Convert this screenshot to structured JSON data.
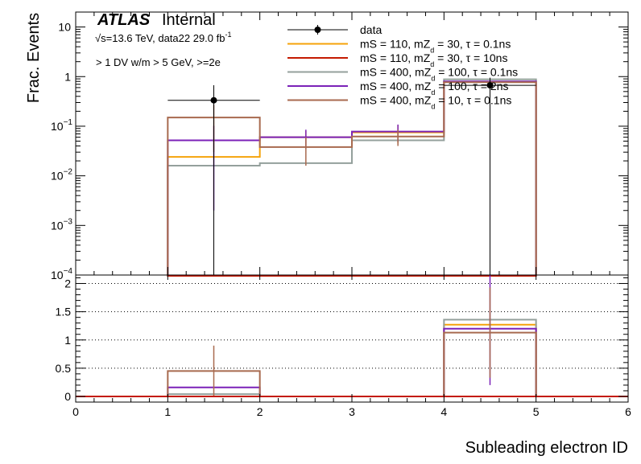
{
  "chart_data": {
    "type": "histogram",
    "title_brand": "ATLAS",
    "title_status": "Internal",
    "energy_prefix": "√s=13.6 TeV, data22 29.0 fb",
    "energy_sup": "-1",
    "selection_label": "> 1 DV w/m > 5 GeV, >=2e",
    "xlabel": "Subleading electron ID",
    "ylabel": "Frac. Events",
    "xlim": [
      0,
      6
    ],
    "top_ylim_log": [
      0.0001,
      20
    ],
    "ratio_ylim": [
      -0.1,
      2.15
    ],
    "x_ticks": [
      "0",
      "1",
      "2",
      "3",
      "4",
      "5",
      "6"
    ],
    "top_y_ticks": [
      {
        "value": 10,
        "label": "10"
      },
      {
        "value": 1,
        "label": "1"
      },
      {
        "value": 0.1,
        "base": "10",
        "exp": "−1"
      },
      {
        "value": 0.01,
        "base": "10",
        "exp": "−2"
      },
      {
        "value": 0.001,
        "base": "10",
        "exp": "−3"
      },
      {
        "value": 0.0001,
        "base": "10",
        "exp": "−4"
      }
    ],
    "ratio_y_ticks": [
      {
        "value": 0,
        "label": "0"
      },
      {
        "value": 0.5,
        "label": "0.5"
      },
      {
        "value": 1,
        "label": "1"
      },
      {
        "value": 1.5,
        "label": "1.5"
      },
      {
        "value": 2,
        "label": "2"
      }
    ],
    "bins": [
      1,
      2,
      3,
      4,
      5
    ],
    "data_series": {
      "name": "data",
      "color": "#000000",
      "points": [
        {
          "x": 1.5,
          "y": 0.333,
          "ylow": 0.0,
          "yhigh": 0.67,
          "xlow": 1,
          "xhigh": 2
        },
        {
          "x": 4.5,
          "y": 0.667,
          "ylow": 0.0,
          "yhigh": 0.95,
          "xlow": 4,
          "xhigh": 5
        }
      ]
    },
    "series": [
      {
        "legend": [
          "mS = 110, mZ",
          "d",
          " = 30, τ = 0.1ns"
        ],
        "color": "#f5a30a",
        "values": [
          0.024,
          0.06,
          0.075,
          0.78
        ],
        "errors": [
          0,
          0.02,
          0.03,
          0.03
        ],
        "ratio": [
          0,
          0,
          0,
          1.27
        ],
        "ratio_errors": [
          0,
          0,
          0,
          0
        ]
      },
      {
        "legend": [
          "mS = 110, mZ",
          "d",
          " = 30, τ = 10ns"
        ],
        "color": "#c41a00",
        "values": [
          0.0,
          0.0,
          0.0,
          0.0
        ],
        "errors": [
          0,
          0,
          0,
          0
        ],
        "ratio": [
          0,
          0,
          0,
          0
        ],
        "ratio_errors": [
          0,
          0,
          0,
          0
        ]
      },
      {
        "legend": [
          "mS = 400, mZ",
          "d",
          " = 100, τ = 0.1ns"
        ],
        "color": "#94a09c",
        "values": [
          0.016,
          0.018,
          0.052,
          0.88
        ],
        "errors": [
          0,
          0,
          0,
          0
        ],
        "ratio": [
          0.04,
          0,
          0,
          1.36
        ],
        "ratio_errors": [
          0,
          0,
          0,
          0
        ]
      },
      {
        "legend": [
          "mS = 400, mZ",
          "d",
          " = 100, τ = 2ns"
        ],
        "color": "#7b22b8",
        "values": [
          0.052,
          0.06,
          0.078,
          0.8
        ],
        "errors": [
          0.05,
          0.025,
          0.03,
          0.03
        ],
        "ratio": [
          0.16,
          0,
          0,
          1.2
        ],
        "ratio_errors": [
          0,
          0,
          0,
          1.0
        ]
      },
      {
        "legend": [
          "mS = 400, mZ",
          "d",
          " = 10, τ = 0.1ns"
        ],
        "color": "#a86a4f",
        "values": [
          0.15,
          0.038,
          0.062,
          0.77
        ],
        "errors": [
          0.12,
          0.022,
          0.022,
          0.02
        ],
        "ratio": [
          0.45,
          0,
          0,
          1.13
        ],
        "ratio_errors": [
          0.45,
          0,
          0,
          0.8
        ]
      }
    ]
  }
}
